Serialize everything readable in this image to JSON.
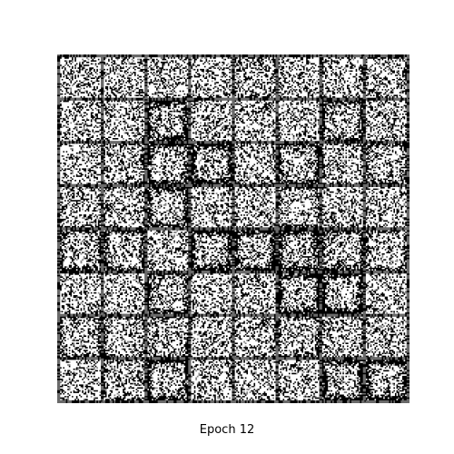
{
  "caption": "Epoch 12"
}
